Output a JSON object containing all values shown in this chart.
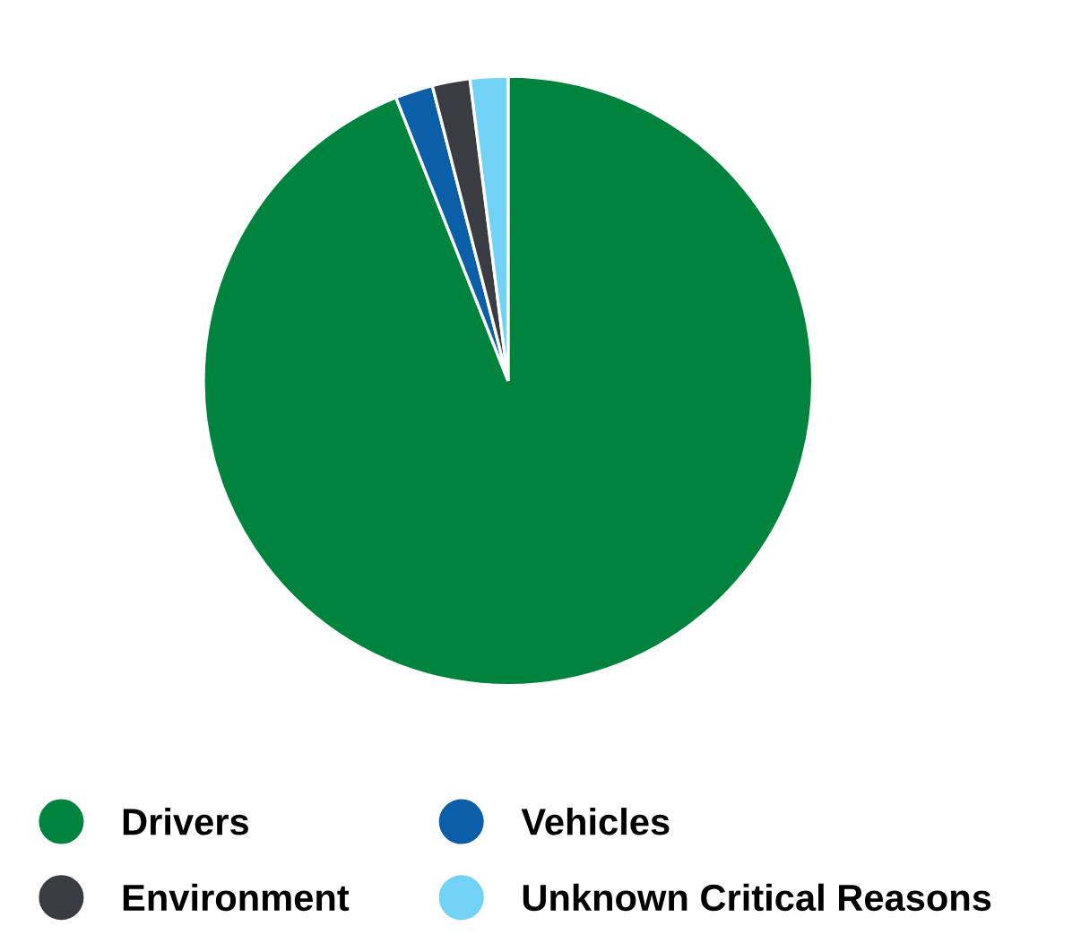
{
  "chart_data": {
    "type": "pie",
    "categories": [
      "Drivers",
      "Vehicles",
      "Environment",
      "Unknown Critical Reasons"
    ],
    "values": [
      94,
      2,
      2,
      2
    ],
    "colors": [
      "#00843d",
      "#0a5fa8",
      "#3b3b44",
      "#72d2f6"
    ],
    "legend": "bottom"
  }
}
